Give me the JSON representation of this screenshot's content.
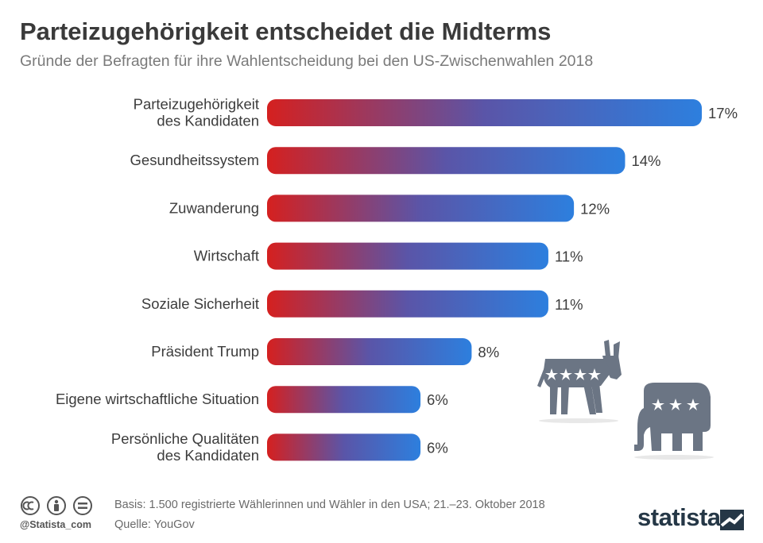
{
  "header": {
    "title": "Parteizugehörigkeit entscheidet die Midterms",
    "subtitle": "Gründe der Befragten für ihre Wahlentscheidung bei den US-Zwischenwahlen 2018"
  },
  "chart_data": {
    "type": "bar",
    "orientation": "horizontal",
    "categories": [
      [
        "Parteizugehörigkeit",
        "des Kandidaten"
      ],
      [
        "Gesundheitssystem"
      ],
      [
        "Zuwanderung"
      ],
      [
        "Wirtschaft"
      ],
      [
        "Soziale Sicherheit"
      ],
      [
        "Präsident Trump"
      ],
      [
        "Eigene wirtschaftliche Situation"
      ],
      [
        "Persönliche Qualitäten",
        "des Kandidaten"
      ]
    ],
    "values": [
      17,
      14,
      12,
      11,
      11,
      8,
      6,
      6
    ],
    "value_labels": [
      "17%",
      "14%",
      "12%",
      "11%",
      "11%",
      "8%",
      "6%",
      "6%"
    ],
    "unit": "%",
    "bar_gradient": [
      "#d5201f",
      "#5a55a8",
      "#2d7fde"
    ],
    "grid": false,
    "legend": "none"
  },
  "footer": {
    "handle": "@Statista_com",
    "basis": "Basis: 1.500 registrierte Wählerinnen und Wähler in den USA; 21.–23. Oktober 2018",
    "source": "Quelle: YouGov",
    "logo": "statista",
    "icons": [
      "creative-commons-icon",
      "attribution-icon",
      "no-derivatives-icon"
    ]
  },
  "colors": {
    "title": "#3a3a3a",
    "subtitle": "#7a7a7a",
    "mascot": "#6b7584",
    "logo": "#253746"
  }
}
